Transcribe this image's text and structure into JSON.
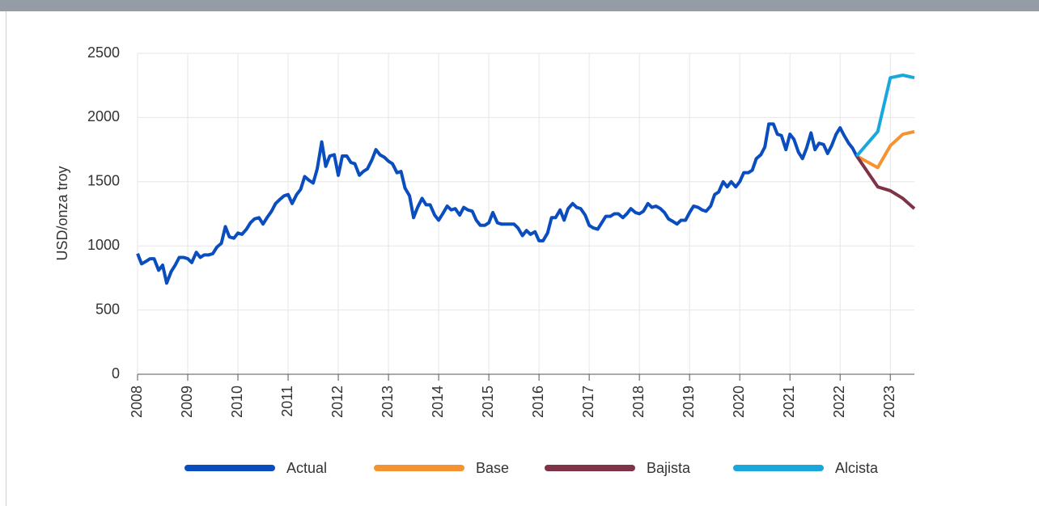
{
  "chart_data": {
    "type": "line",
    "y_label": "USD/onza troy",
    "xlim": [
      2008,
      2023.48
    ],
    "xticks": [
      2008,
      2009,
      2010,
      2011,
      2012,
      2013,
      2014,
      2015,
      2016,
      2017,
      2018,
      2019,
      2020,
      2021,
      2022,
      2023
    ],
    "ylim": [
      0,
      2500
    ],
    "yticks": [
      0,
      500,
      1000,
      1500,
      2000,
      2500
    ],
    "grid": true,
    "legend": "bottom",
    "series": [
      {
        "name": "Actual",
        "color": "#0a4dbf",
        "x": [
          2008.0,
          2008.08,
          2008.17,
          2008.25,
          2008.33,
          2008.42,
          2008.5,
          2008.58,
          2008.67,
          2008.75,
          2008.83,
          2008.92,
          2009.0,
          2009.08,
          2009.17,
          2009.25,
          2009.33,
          2009.42,
          2009.5,
          2009.58,
          2009.67,
          2009.75,
          2009.83,
          2009.92,
          2010.0,
          2010.08,
          2010.17,
          2010.25,
          2010.33,
          2010.42,
          2010.5,
          2010.58,
          2010.67,
          2010.75,
          2010.83,
          2010.92,
          2011.0,
          2011.08,
          2011.17,
          2011.25,
          2011.33,
          2011.42,
          2011.5,
          2011.58,
          2011.67,
          2011.75,
          2011.83,
          2011.92,
          2012.0,
          2012.08,
          2012.17,
          2012.25,
          2012.33,
          2012.42,
          2012.5,
          2012.58,
          2012.67,
          2012.75,
          2012.83,
          2012.92,
          2013.0,
          2013.08,
          2013.17,
          2013.25,
          2013.33,
          2013.42,
          2013.5,
          2013.58,
          2013.67,
          2013.75,
          2013.83,
          2013.92,
          2014.0,
          2014.08,
          2014.17,
          2014.25,
          2014.33,
          2014.42,
          2014.5,
          2014.58,
          2014.67,
          2014.75,
          2014.83,
          2014.92,
          2015.0,
          2015.08,
          2015.17,
          2015.25,
          2015.33,
          2015.42,
          2015.5,
          2015.58,
          2015.67,
          2015.75,
          2015.83,
          2015.92,
          2016.0,
          2016.08,
          2016.17,
          2016.25,
          2016.33,
          2016.42,
          2016.5,
          2016.58,
          2016.67,
          2016.75,
          2016.83,
          2016.92,
          2017.0,
          2017.08,
          2017.17,
          2017.25,
          2017.33,
          2017.42,
          2017.5,
          2017.58,
          2017.67,
          2017.75,
          2017.83,
          2017.92,
          2018.0,
          2018.08,
          2018.17,
          2018.25,
          2018.33,
          2018.42,
          2018.5,
          2018.58,
          2018.67,
          2018.75,
          2018.83,
          2018.92,
          2019.0,
          2019.08,
          2019.17,
          2019.25,
          2019.33,
          2019.42,
          2019.5,
          2019.58,
          2019.67,
          2019.75,
          2019.83,
          2019.92,
          2020.0,
          2020.08,
          2020.17,
          2020.25,
          2020.33,
          2020.42,
          2020.5,
          2020.58,
          2020.67,
          2020.75,
          2020.83,
          2020.92,
          2021.0,
          2021.08,
          2021.17,
          2021.25,
          2021.33,
          2021.42,
          2021.5,
          2021.58,
          2021.67,
          2021.75,
          2021.83,
          2021.92,
          2022.0,
          2022.08,
          2022.17,
          2022.25,
          2022.33
        ],
        "values": [
          940,
          860,
          880,
          900,
          900,
          810,
          850,
          710,
          800,
          850,
          910,
          910,
          900,
          870,
          950,
          910,
          930,
          930,
          940,
          990,
          1020,
          1150,
          1070,
          1060,
          1100,
          1090,
          1130,
          1180,
          1210,
          1220,
          1170,
          1220,
          1270,
          1330,
          1360,
          1390,
          1400,
          1330,
          1400,
          1440,
          1540,
          1510,
          1490,
          1600,
          1810,
          1620,
          1700,
          1710,
          1550,
          1700,
          1700,
          1650,
          1640,
          1550,
          1580,
          1600,
          1670,
          1750,
          1710,
          1690,
          1660,
          1640,
          1570,
          1580,
          1450,
          1390,
          1220,
          1300,
          1370,
          1320,
          1320,
          1240,
          1200,
          1250,
          1310,
          1280,
          1290,
          1240,
          1300,
          1280,
          1270,
          1200,
          1160,
          1160,
          1180,
          1260,
          1180,
          1170,
          1170,
          1170,
          1170,
          1140,
          1080,
          1120,
          1090,
          1110,
          1040,
          1040,
          1100,
          1220,
          1220,
          1280,
          1200,
          1290,
          1330,
          1300,
          1290,
          1240,
          1160,
          1140,
          1130,
          1180,
          1230,
          1230,
          1250,
          1250,
          1220,
          1250,
          1290,
          1260,
          1250,
          1270,
          1330,
          1300,
          1310,
          1290,
          1260,
          1210,
          1190,
          1170,
          1200,
          1200,
          1260,
          1310,
          1300,
          1280,
          1270,
          1310,
          1400,
          1420,
          1500,
          1460,
          1500,
          1460,
          1500,
          1570,
          1570,
          1590,
          1680,
          1710,
          1770,
          1950,
          1950,
          1870,
          1860,
          1750,
          1870,
          1830,
          1730,
          1680,
          1760,
          1880,
          1750,
          1800,
          1790,
          1720,
          1780,
          1870,
          1920,
          1860,
          1800,
          1760,
          1700
        ]
      },
      {
        "name": "Base",
        "color": "#f39332",
        "x": [
          2022.33,
          2022.75,
          2023.0,
          2023.25,
          2023.48
        ],
        "values": [
          1700,
          1610,
          1780,
          1870,
          1890
        ]
      },
      {
        "name": "Bajista",
        "color": "#7e3346",
        "x": [
          2022.33,
          2022.75,
          2023.0,
          2023.25,
          2023.48
        ],
        "values": [
          1700,
          1460,
          1430,
          1370,
          1290
        ]
      },
      {
        "name": "Alcista",
        "color": "#1aa8dc",
        "x": [
          2022.33,
          2022.75,
          2023.0,
          2023.25,
          2023.48
        ],
        "values": [
          1700,
          1890,
          2310,
          2330,
          2310
        ]
      }
    ]
  }
}
